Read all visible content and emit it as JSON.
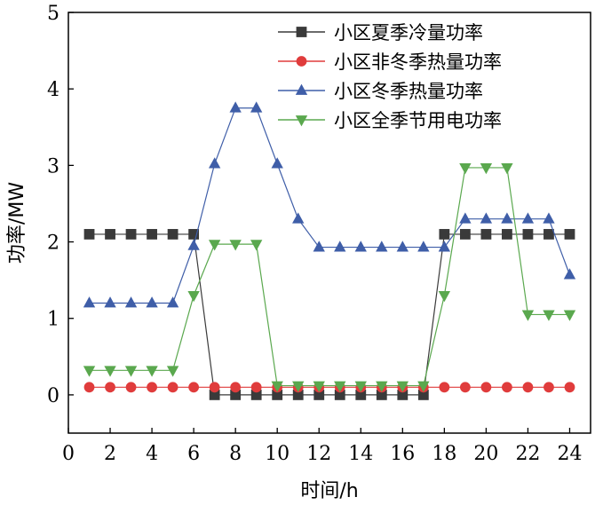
{
  "chart_data": {
    "type": "line",
    "xlabel": "时间/h",
    "ylabel": "功率/MW",
    "xlim": [
      0,
      25
    ],
    "ylim": [
      -0.5,
      5
    ],
    "xticks": [
      0,
      2,
      4,
      6,
      8,
      10,
      12,
      14,
      16,
      18,
      20,
      22,
      24
    ],
    "yticks": [
      0,
      1,
      2,
      3,
      4,
      5
    ],
    "grid": false,
    "legend_position": "top-right",
    "x": [
      1,
      2,
      3,
      4,
      5,
      6,
      7,
      8,
      9,
      10,
      11,
      12,
      13,
      14,
      15,
      16,
      17,
      18,
      19,
      20,
      21,
      22,
      23,
      24
    ],
    "series": [
      {
        "name": "小区夏季冷量功率",
        "color": "#3a3a3a",
        "marker": "square",
        "values": [
          2.1,
          2.1,
          2.1,
          2.1,
          2.1,
          2.1,
          0.0,
          0.0,
          0.0,
          0.0,
          0.0,
          0.0,
          0.0,
          0.0,
          0.0,
          0.0,
          0.0,
          2.1,
          2.1,
          2.1,
          2.1,
          2.1,
          2.1,
          2.1
        ]
      },
      {
        "name": "小区非冬季热量功率",
        "color": "#e03c3c",
        "marker": "circle",
        "values": [
          0.1,
          0.1,
          0.1,
          0.1,
          0.1,
          0.1,
          0.1,
          0.1,
          0.1,
          0.1,
          0.1,
          0.1,
          0.1,
          0.1,
          0.1,
          0.1,
          0.1,
          0.1,
          0.1,
          0.1,
          0.1,
          0.1,
          0.1,
          0.1
        ]
      },
      {
        "name": "小区冬季热量功率",
        "color": "#3f5ea8",
        "marker": "triangle-up",
        "values": [
          1.2,
          1.2,
          1.2,
          1.2,
          1.2,
          1.95,
          3.02,
          3.75,
          3.75,
          3.02,
          2.3,
          1.93,
          1.93,
          1.93,
          1.93,
          1.93,
          1.93,
          1.93,
          2.3,
          2.3,
          2.3,
          2.3,
          2.3,
          1.57
        ]
      },
      {
        "name": "小区全季节用电功率",
        "color": "#5aa84e",
        "marker": "triangle-down",
        "values": [
          0.32,
          0.32,
          0.32,
          0.32,
          0.32,
          1.3,
          1.97,
          1.97,
          1.97,
          0.12,
          0.12,
          0.12,
          0.12,
          0.12,
          0.12,
          0.12,
          0.12,
          1.3,
          2.97,
          2.97,
          2.97,
          1.05,
          1.05,
          1.05
        ]
      }
    ]
  }
}
